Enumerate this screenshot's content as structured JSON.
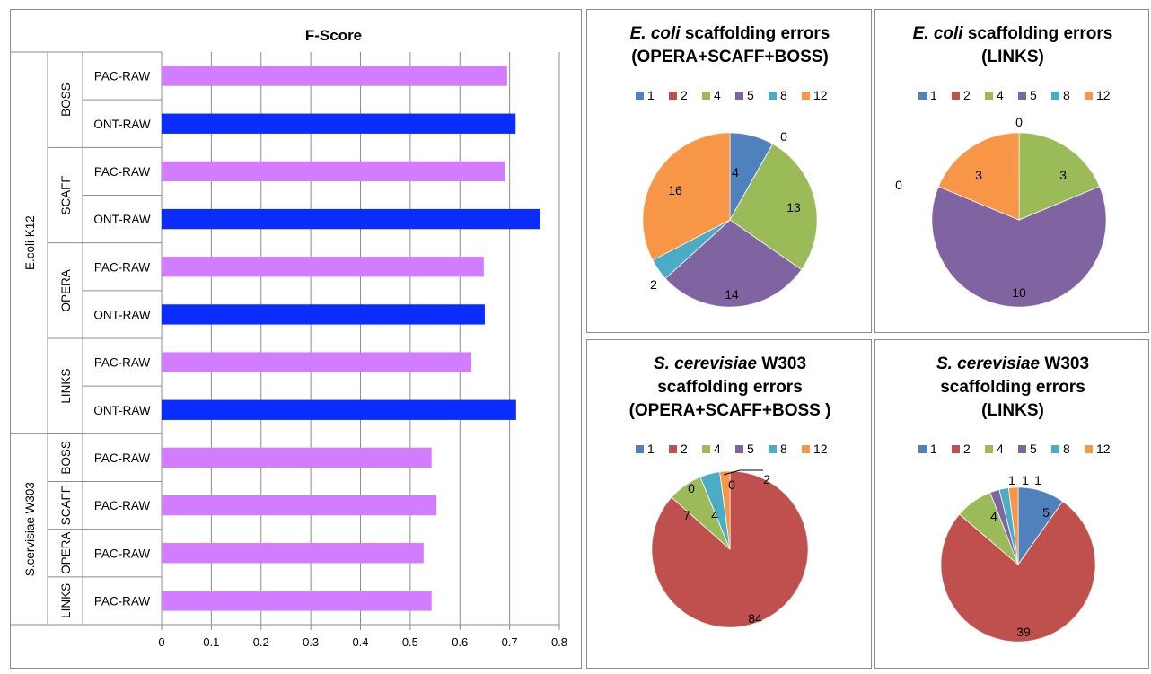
{
  "bar_chart": {
    "title": "F-Score",
    "xticks": [
      "0",
      "0.1",
      "0.2",
      "0.3",
      "0.4",
      "0.5",
      "0.6",
      "0.7",
      "0.8"
    ]
  },
  "pie_legend_labels": [
    "1",
    "2",
    "4",
    "5",
    "8",
    "12"
  ],
  "colors": {
    "pac_raw": "#d27cff",
    "ont_raw": "#0b2cff",
    "pie": [
      "#4f81bd",
      "#c0504d",
      "#9bbb59",
      "#8064a2",
      "#4bacc6",
      "#f79646"
    ]
  },
  "chart_data": [
    {
      "type": "bar",
      "orientation": "horizontal",
      "title": "F-Score",
      "xlim": [
        0,
        0.8
      ],
      "grid": true,
      "organisms": [
        {
          "label": "E.coli K12",
          "tools": [
            "BOSS",
            "SCAFF",
            "OPERA",
            "LINKS"
          ]
        },
        {
          "label": "S.cervisiae  W303",
          "tools": [
            "BOSS",
            "SCAFF",
            "OPERA",
            "LINKS"
          ]
        }
      ],
      "categories": [
        {
          "organism": "E.coli K12",
          "tool": "BOSS",
          "label": "PAC-RAW"
        },
        {
          "organism": "E.coli K12",
          "tool": "BOSS",
          "label": "ONT-RAW"
        },
        {
          "organism": "E.coli K12",
          "tool": "SCAFF",
          "label": "PAC-RAW"
        },
        {
          "organism": "E.coli K12",
          "tool": "SCAFF",
          "label": "ONT-RAW"
        },
        {
          "organism": "E.coli K12",
          "tool": "OPERA",
          "label": "PAC-RAW"
        },
        {
          "organism": "E.coli K12",
          "tool": "OPERA",
          "label": "ONT-RAW"
        },
        {
          "organism": "E.coli K12",
          "tool": "LINKS",
          "label": "PAC-RAW"
        },
        {
          "organism": "E.coli K12",
          "tool": "LINKS",
          "label": "ONT-RAW"
        },
        {
          "organism": "S.cervisiae  W303",
          "tool": "BOSS",
          "label": "PAC-RAW"
        },
        {
          "organism": "S.cervisiae  W303",
          "tool": "SCAFF",
          "label": "PAC-RAW"
        },
        {
          "organism": "S.cervisiae  W303",
          "tool": "OPERA",
          "label": "PAC-RAW"
        },
        {
          "organism": "S.cervisiae  W303",
          "tool": "LINKS",
          "label": "PAC-RAW"
        }
      ],
      "values": [
        0.695,
        0.712,
        0.69,
        0.762,
        0.648,
        0.65,
        0.623,
        0.713,
        0.543,
        0.553,
        0.527,
        0.543
      ]
    },
    {
      "type": "pie",
      "title_italic": "E. coli",
      "title_rest": " scaffolding errors",
      "title_line2": "(OPERA+SCAFF+BOSS)",
      "legend": [
        "1",
        "2",
        "4",
        "5",
        "8",
        "12"
      ],
      "values": [
        4,
        0,
        13,
        14,
        2,
        16
      ],
      "labels": [
        "4",
        "0",
        "13",
        "14",
        "2",
        "16"
      ]
    },
    {
      "type": "pie",
      "title_italic": "E. coli",
      "title_rest": " scaffolding errors",
      "title_line2": "(LINKS)",
      "legend": [
        "1",
        "2",
        "4",
        "5",
        "8",
        "12"
      ],
      "values": [
        0,
        0,
        3,
        10,
        0,
        3
      ],
      "labels": [
        "",
        "0",
        "3",
        "10",
        "0",
        "3"
      ]
    },
    {
      "type": "pie",
      "title_italic": "S. cerevisiae",
      "title_rest": " W303",
      "title_line2": "scaffolding errors",
      "title_line3": "(OPERA+SCAFF+BOSS )",
      "legend": [
        "1",
        "2",
        "4",
        "5",
        "8",
        "12"
      ],
      "values": [
        0,
        84,
        7,
        0,
        4,
        2
      ],
      "labels": [
        "0",
        "84",
        "7",
        "",
        "4",
        "2"
      ],
      "extra_label": "0"
    },
    {
      "type": "pie",
      "title_italic": "S. cerevisiae",
      "title_rest": " W303",
      "title_line2": "scaffolding errors",
      "title_line3": "(LINKS)",
      "legend": [
        "1",
        "2",
        "4",
        "5",
        "8",
        "12"
      ],
      "values": [
        5,
        39,
        4,
        1,
        1,
        1
      ],
      "labels": [
        "5",
        "39",
        "4",
        "1",
        "1",
        "1"
      ]
    }
  ]
}
